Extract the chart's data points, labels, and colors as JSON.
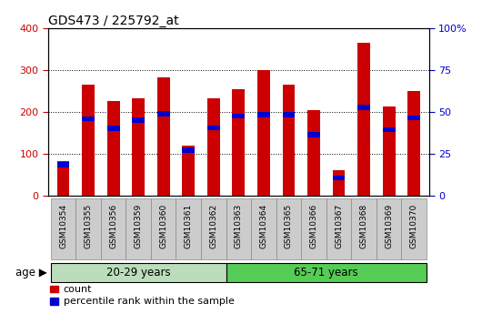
{
  "title": "GDS473 / 225792_at",
  "samples": [
    "GSM10354",
    "GSM10355",
    "GSM10356",
    "GSM10359",
    "GSM10360",
    "GSM10361",
    "GSM10362",
    "GSM10363",
    "GSM10364",
    "GSM10365",
    "GSM10366",
    "GSM10367",
    "GSM10368",
    "GSM10369",
    "GSM10370"
  ],
  "count_values": [
    83,
    265,
    225,
    232,
    283,
    120,
    232,
    255,
    300,
    265,
    205,
    60,
    365,
    212,
    250
  ],
  "percentile_values": [
    73,
    183,
    160,
    180,
    195,
    108,
    162,
    190,
    193,
    193,
    145,
    42,
    210,
    157,
    186
  ],
  "group1_label": "20-29 years",
  "group2_label": "65-71 years",
  "group1_count": 7,
  "group2_count": 8,
  "left_ylim": [
    0,
    400
  ],
  "right_ylim": [
    0,
    100
  ],
  "left_yticks": [
    0,
    100,
    200,
    300,
    400
  ],
  "right_yticks": [
    0,
    25,
    50,
    75,
    100
  ],
  "right_yticklabels": [
    "0",
    "25",
    "50",
    "75",
    "100%"
  ],
  "bar_color": "#cc0000",
  "percentile_color": "#0000cc",
  "group1_bg": "#bbddbb",
  "group2_bg": "#55cc55",
  "tick_bg": "#cccccc",
  "title_color": "#000000",
  "left_tick_color": "#cc0000",
  "right_tick_color": "#0000cc",
  "legend_count_label": "count",
  "legend_percentile_label": "percentile rank within the sample",
  "bar_width": 0.5,
  "grid_color": "#000000"
}
